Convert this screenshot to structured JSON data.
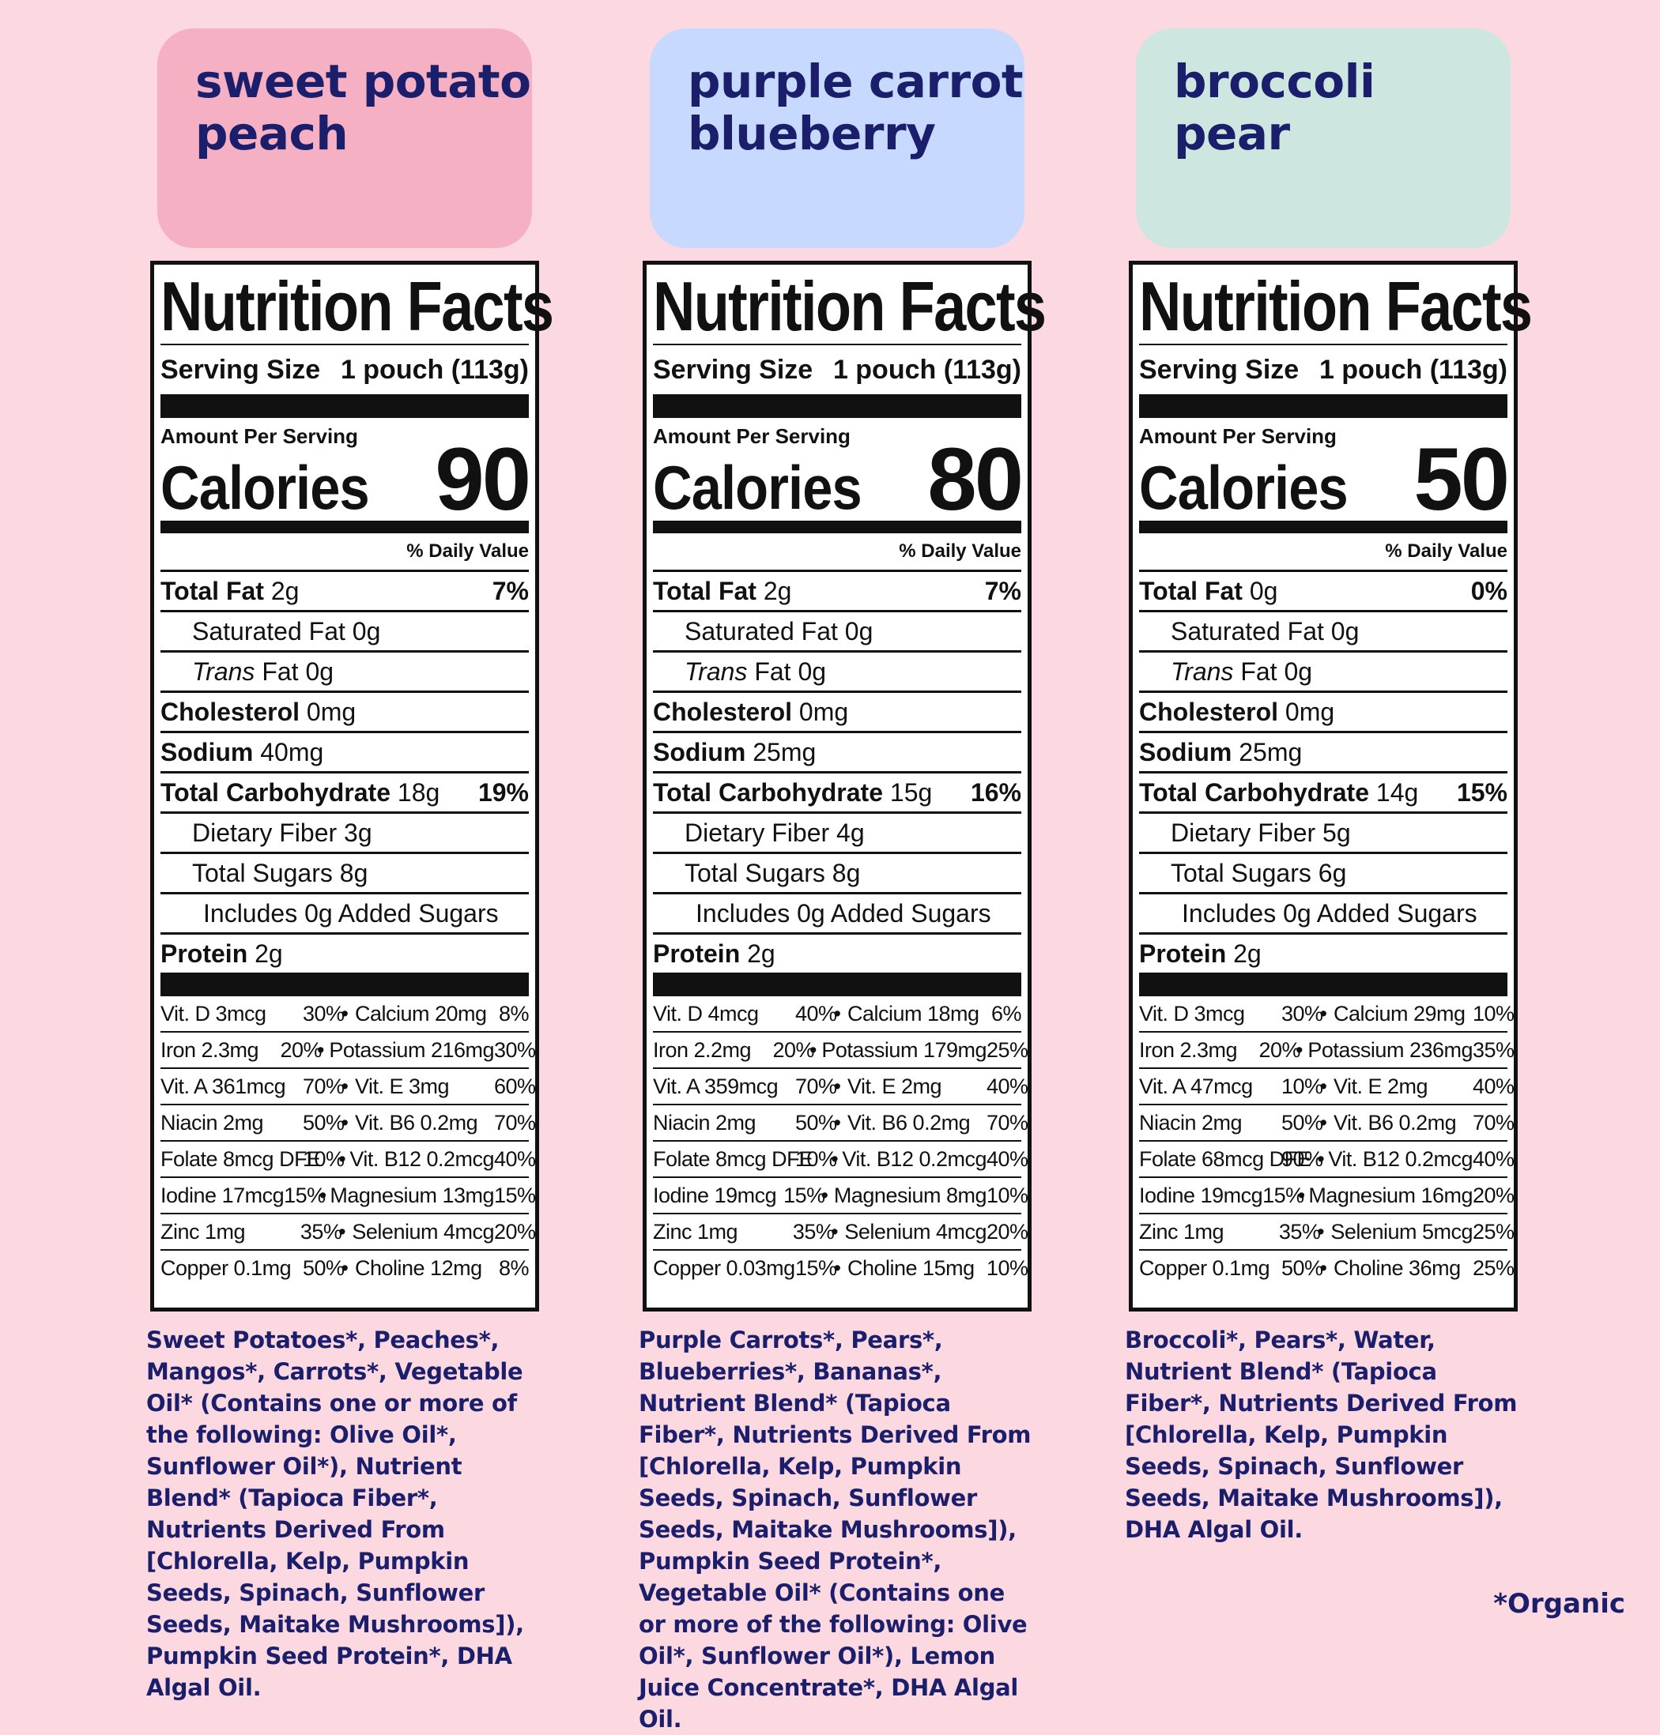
{
  "colors": {
    "background": "#fcd9e0",
    "text_navy": "#1b1f6b",
    "tag_pink": "#f5b0c3",
    "tag_blue": "#c8d9ff",
    "tag_mint": "#cde6df"
  },
  "organic_note": "*Organic",
  "products": [
    {
      "title_line1": "sweet potato",
      "title_line2": "peach",
      "nf": {
        "title": "Nutrition Facts",
        "serving_label": "Serving Size",
        "serving_value": "1 pouch (113g)",
        "amount_per_serving": "Amount Per Serving",
        "calories_label": "Calories",
        "calories": "90",
        "daily_value_header": "% Daily Value",
        "total_fat_label": "Total Fat",
        "total_fat": "2g",
        "total_fat_dv": "7%",
        "sat_fat": "Saturated Fat 0g",
        "trans_fat_italic": "Trans",
        "trans_fat_rest": " Fat 0g",
        "cholesterol_label": "Cholesterol",
        "cholesterol": "0mg",
        "sodium_label": "Sodium",
        "sodium": "40mg",
        "carb_label": "Total Carbohydrate",
        "carb": "18g",
        "carb_dv": "19%",
        "fiber": "Dietary Fiber 3g",
        "sugars": "Total Sugars 8g",
        "added_sugars": "Includes 0g Added Sugars",
        "protein_label": "Protein",
        "protein": "2g",
        "vitamins": [
          [
            "Vit. D 3mcg",
            "30%",
            "Calcium 20mg",
            "8%"
          ],
          [
            "Iron 2.3mg",
            "20%",
            "Potassium 216mg",
            "30%"
          ],
          [
            "Vit. A 361mcg",
            "70%",
            "Vit. E 3mg",
            "60%"
          ],
          [
            "Niacin 2mg",
            "50%",
            "Vit. B6 0.2mg",
            "70%"
          ],
          [
            "Folate 8mcg DFE",
            "10%",
            "Vit. B12 0.2mcg",
            "40%"
          ],
          [
            "Iodine 17mcg",
            "15%",
            "Magnesium 13mg",
            "15%"
          ],
          [
            "Zinc 1mg",
            "35%",
            "Selenium 4mcg",
            "20%"
          ],
          [
            "Copper 0.1mg",
            "50%",
            "Choline 12mg",
            "8%"
          ]
        ]
      },
      "ingredients": "Sweet Potatoes*, Peaches*, Mangos*, Carrots*, Vegetable Oil* (Contains one or more of the following: Olive Oil*, Sunflower Oil*), Nutrient Blend* (Tapioca Fiber*, Nutrients Derived From [Chlorella, Kelp, Pumpkin Seeds, Spinach, Sunflower Seeds, Maitake Mushrooms]), Pumpkin Seed Protein*, DHA Algal Oil."
    },
    {
      "title_line1": "purple carrot",
      "title_line2": "blueberry",
      "nf": {
        "title": "Nutrition Facts",
        "serving_label": "Serving Size",
        "serving_value": "1 pouch (113g)",
        "amount_per_serving": "Amount Per Serving",
        "calories_label": "Calories",
        "calories": "80",
        "daily_value_header": "% Daily Value",
        "total_fat_label": "Total Fat",
        "total_fat": "2g",
        "total_fat_dv": "7%",
        "sat_fat": "Saturated Fat 0g",
        "trans_fat_italic": "Trans",
        "trans_fat_rest": " Fat 0g",
        "cholesterol_label": "Cholesterol",
        "cholesterol": "0mg",
        "sodium_label": "Sodium",
        "sodium": "25mg",
        "carb_label": "Total Carbohydrate",
        "carb": "15g",
        "carb_dv": "16%",
        "fiber": "Dietary Fiber 4g",
        "sugars": "Total Sugars 8g",
        "added_sugars": "Includes 0g Added Sugars",
        "protein_label": "Protein",
        "protein": "2g",
        "vitamins": [
          [
            "Vit. D 4mcg",
            "40%",
            "Calcium 18mg",
            "6%"
          ],
          [
            "Iron 2.2mg",
            "20%",
            "Potassium 179mg",
            "25%"
          ],
          [
            "Vit. A 359mcg",
            "70%",
            "Vit. E 2mg",
            "40%"
          ],
          [
            "Niacin 2mg",
            "50%",
            "Vit. B6 0.2mg",
            "70%"
          ],
          [
            "Folate 8mcg DFE",
            "10%",
            "Vit. B12 0.2mcg",
            "40%"
          ],
          [
            "Iodine 19mcg",
            "15%",
            "Magnesium 8mg",
            "10%"
          ],
          [
            "Zinc 1mg",
            "35%",
            "Selenium 4mcg",
            "20%"
          ],
          [
            "Copper 0.03mg",
            "15%",
            "Choline 15mg",
            "10%"
          ]
        ]
      },
      "ingredients": "Purple Carrots*, Pears*, Blueberries*, Bananas*, Nutrient Blend* (Tapioca Fiber*, Nutrients Derived From [Chlorella, Kelp, Pumpkin Seeds, Spinach, Sunflower Seeds, Maitake Mushrooms]), Pumpkin Seed Protein*, Vegetable Oil* (Contains one or more of the following: Olive Oil*, Sunflower Oil*), Lemon Juice Concentrate*, DHA Algal Oil."
    },
    {
      "title_line1": "broccoli",
      "title_line2": "pear",
      "nf": {
        "title": "Nutrition Facts",
        "serving_label": "Serving Size",
        "serving_value": "1 pouch (113g)",
        "amount_per_serving": "Amount Per Serving",
        "calories_label": "Calories",
        "calories": "50",
        "daily_value_header": "% Daily Value",
        "total_fat_label": "Total Fat",
        "total_fat": "0g",
        "total_fat_dv": "0%",
        "sat_fat": "Saturated Fat 0g",
        "trans_fat_italic": "Trans",
        "trans_fat_rest": " Fat 0g",
        "cholesterol_label": "Cholesterol",
        "cholesterol": "0mg",
        "sodium_label": "Sodium",
        "sodium": "25mg",
        "carb_label": "Total Carbohydrate",
        "carb": "14g",
        "carb_dv": "15%",
        "fiber": "Dietary Fiber 5g",
        "sugars": "Total Sugars 6g",
        "added_sugars": "Includes 0g Added Sugars",
        "protein_label": "Protein",
        "protein": "2g",
        "vitamins": [
          [
            "Vit. D 3mcg",
            "30%",
            "Calcium 29mg",
            "10%"
          ],
          [
            "Iron 2.3mg",
            "20%",
            "Potassium 236mg",
            "35%"
          ],
          [
            "Vit. A 47mcg",
            "10%",
            "Vit. E 2mg",
            "40%"
          ],
          [
            "Niacin 2mg",
            "50%",
            "Vit. B6 0.2mg",
            "70%"
          ],
          [
            "Folate 68mcg DFE",
            "90%",
            "Vit. B12 0.2mcg",
            "40%"
          ],
          [
            "Iodine 19mcg",
            "15%",
            "Magnesium 16mg",
            "20%"
          ],
          [
            "Zinc 1mg",
            "35%",
            "Selenium 5mcg",
            "25%"
          ],
          [
            "Copper 0.1mg",
            "50%",
            "Choline 36mg",
            "25%"
          ]
        ]
      },
      "ingredients": "Broccoli*, Pears*, Water,  Nutrient Blend* (Tapioca Fiber*, Nutrients Derived From [Chlorella, Kelp, Pumpkin Seeds, Spinach, Sunflower Seeds, Maitake Mushrooms]), DHA Algal Oil."
    }
  ]
}
